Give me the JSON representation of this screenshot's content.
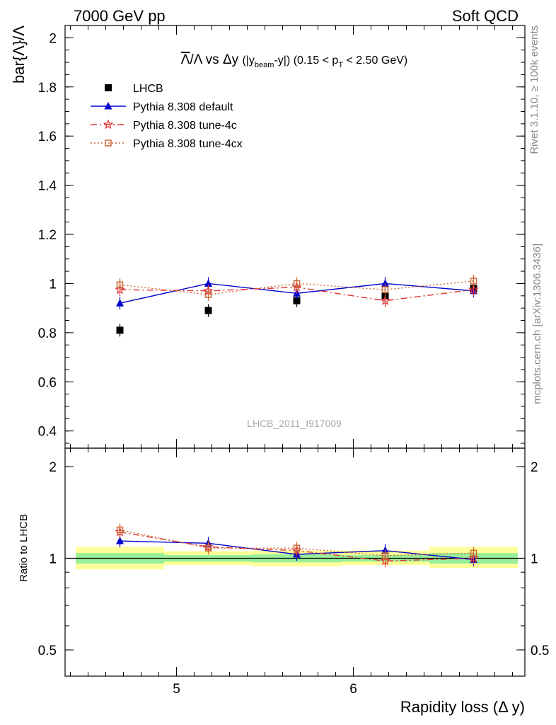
{
  "header": {
    "left": "7000 GeV pp",
    "right": "Soft QCD"
  },
  "side": {
    "rivet": "Rivet 3.1.10, ≥ 100k events",
    "mcplots": "mcplots.cern.ch [arXiv:1306.3436]"
  },
  "watermark": "LHCB_2011_I917009",
  "colors": {
    "data": "#000000",
    "default": "#0000cc",
    "tune4c": "#dd3333",
    "tune4cx": "#cc6633",
    "band_green": "#99ee99",
    "band_yellow": "#ffff99"
  },
  "chart_data": [
    {
      "type": "scatter",
      "title_parts": {
        "num": "Λ",
        "den": "/Λ vs Δy",
        "p1": "(|y",
        "sub1": "beam",
        "p2": "-y|) (0.15 < p",
        "sub2": "T",
        "p3": " < 2.50 GeV)"
      },
      "ylabel": "bar{Λ}/Λ",
      "ylim": [
        0.33,
        2.05
      ],
      "yticks": [
        0.4,
        0.6,
        0.8,
        1,
        1.2,
        1.4,
        1.6,
        1.8,
        2
      ],
      "ytick_labels": [
        "0.4",
        "0.6",
        "0.8",
        "1",
        "1.2",
        "1.4",
        "1.6",
        "1.8",
        "2"
      ],
      "xlim": [
        4.37,
        6.97
      ],
      "legend_position": "top-left",
      "series": [
        {
          "name": "LHCB",
          "style": "data",
          "x": [
            4.68,
            5.18,
            5.68,
            6.18,
            6.68
          ],
          "y": [
            0.81,
            0.89,
            0.93,
            0.95,
            0.98
          ]
        },
        {
          "name": "Pythia 8.308 default",
          "style": "default",
          "x": [
            4.68,
            5.18,
            5.68,
            6.18,
            6.68
          ],
          "y": [
            0.92,
            1.0,
            0.96,
            1.0,
            0.97
          ]
        },
        {
          "name": "Pythia 8.308 tune-4c",
          "style": "tune4c",
          "x": [
            4.68,
            5.18,
            5.68,
            6.18,
            6.68
          ],
          "y": [
            0.975,
            0.97,
            0.985,
            0.93,
            0.975
          ]
        },
        {
          "name": "Pythia 8.308 tune-4cx",
          "style": "tune4cx",
          "x": [
            4.68,
            5.18,
            5.68,
            6.18,
            6.68
          ],
          "y": [
            0.995,
            0.955,
            1.0,
            0.975,
            1.01
          ]
        }
      ]
    },
    {
      "type": "scatter",
      "ylabel": "Ratio to LHCB",
      "xlabel": "Rapidity loss (Δ y)",
      "ylim": [
        0.41,
        2.3
      ],
      "yscale": "log",
      "yticks": [
        0.5,
        1,
        2
      ],
      "ytick_labels": [
        "0.5",
        "1",
        "2"
      ],
      "xlim": [
        4.37,
        6.97
      ],
      "xticks": [
        5,
        6
      ],
      "xtick_labels": [
        "5",
        "6"
      ],
      "bands": {
        "edges": [
          4.43,
          4.93,
          5.43,
          5.93,
          6.43,
          6.93
        ],
        "green": [
          [
            0.96,
            1.04
          ],
          [
            0.975,
            1.025
          ],
          [
            0.97,
            1.03
          ],
          [
            0.975,
            1.025
          ],
          [
            0.96,
            1.04
          ]
        ],
        "yellow": [
          [
            0.92,
            1.09
          ],
          [
            0.95,
            1.055
          ],
          [
            0.94,
            1.06
          ],
          [
            0.95,
            1.06
          ],
          [
            0.93,
            1.09
          ]
        ]
      },
      "series": [
        {
          "name": "Pythia 8.308 default",
          "style": "default",
          "x": [
            4.68,
            5.18,
            5.68,
            6.18,
            6.68
          ],
          "y": [
            1.14,
            1.12,
            1.03,
            1.06,
            0.99
          ]
        },
        {
          "name": "Pythia 8.308 tune-4c",
          "style": "tune4c",
          "x": [
            4.68,
            5.18,
            5.68,
            6.18,
            6.68
          ],
          "y": [
            1.22,
            1.09,
            1.06,
            0.98,
            1.0
          ]
        },
        {
          "name": "Pythia 8.308 tune-4cx",
          "style": "tune4cx",
          "x": [
            4.68,
            5.18,
            5.68,
            6.18,
            6.68
          ],
          "y": [
            1.24,
            1.08,
            1.08,
            1.02,
            1.04
          ]
        }
      ]
    }
  ]
}
